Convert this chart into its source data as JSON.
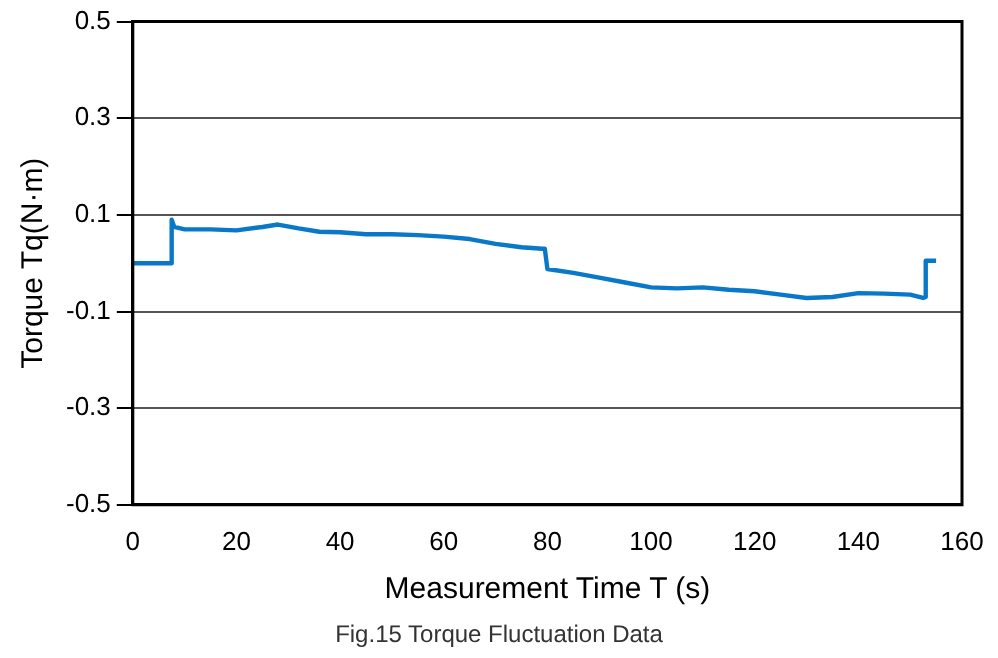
{
  "chart_data": {
    "type": "line",
    "xlabel": "Measurement Time T (s)",
    "ylabel": "Torque Tq(N·m)",
    "annotations": [
      "Fig.15 Torque Fluctuation Data"
    ],
    "x": [
      0,
      7.5,
      7.5,
      8,
      10,
      15,
      20,
      25,
      28,
      32,
      36,
      40,
      45,
      50,
      55,
      60,
      65,
      70,
      75,
      79,
      79.5,
      80,
      85,
      90,
      95,
      100,
      105,
      110,
      115,
      120,
      125,
      130,
      135,
      140,
      145,
      150,
      152.5,
      153,
      153,
      155
    ],
    "series": [
      {
        "color": "#0a78c8",
        "values": [
          0,
          0,
          0.09,
          0.075,
          0.07,
          0.07,
          0.068,
          0.075,
          0.08,
          0.072,
          0.065,
          0.064,
          0.06,
          0.06,
          0.058,
          0.055,
          0.05,
          0.04,
          0.033,
          0.03,
          0.03,
          -0.012,
          -0.02,
          -0.03,
          -0.04,
          -0.05,
          -0.052,
          -0.05,
          -0.055,
          -0.058,
          -0.065,
          -0.072,
          -0.07,
          -0.062,
          -0.063,
          -0.065,
          -0.072,
          -0.07,
          0.005,
          0.005
        ]
      }
    ],
    "xlim": [
      0,
      160
    ],
    "xticks": [
      0,
      20,
      40,
      60,
      80,
      100,
      120,
      140,
      160
    ],
    "ylim": [
      -0.5,
      0.5
    ],
    "yticks": [
      -0.5,
      -0.3,
      -0.1,
      0.1,
      0.3,
      0.5
    ],
    "grid": "y",
    "legend": false,
    "marker": "none",
    "line_style": "solid"
  }
}
